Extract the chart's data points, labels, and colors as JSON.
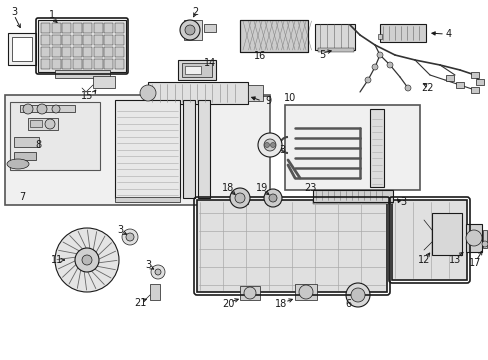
{
  "fig_width": 4.89,
  "fig_height": 3.6,
  "dpi": 100,
  "bg_color": "#ffffff",
  "line_color": "#1a1a1a",
  "gray1": "#d8d8d8",
  "gray2": "#c0c0c0",
  "gray3": "#a8a8a8",
  "gray_light": "#eeeeee",
  "gray_box": "#e8e8e8",
  "label_fs": 7.0
}
